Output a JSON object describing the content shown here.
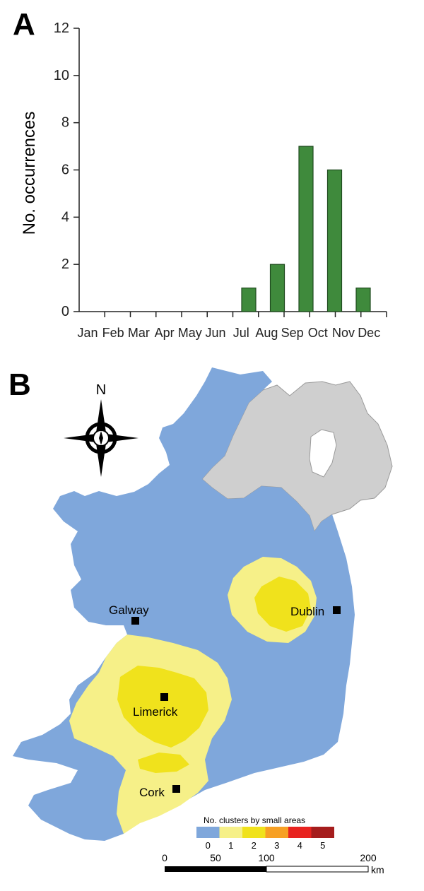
{
  "panels": {
    "a_label": "A",
    "b_label": "B"
  },
  "chart_data": {
    "type": "bar",
    "categories": [
      "Jan",
      "Feb",
      "Mar",
      "Apr",
      "May",
      "Jun",
      "Jul",
      "Aug",
      "Sep",
      "Oct",
      "Nov",
      "Dec"
    ],
    "values": [
      0,
      0,
      0,
      0,
      0,
      0,
      1,
      2,
      7,
      6,
      1,
      0
    ],
    "ylabel": "No. occurrences",
    "ylim": [
      0,
      12
    ],
    "yticks": [
      0,
      2,
      4,
      6,
      8,
      10,
      12
    ],
    "bar_color": "#3f8a3c",
    "grid": false
  },
  "map": {
    "compass_label": "N",
    "cities": [
      {
        "name": "Galway"
      },
      {
        "name": "Dublin"
      },
      {
        "name": "Limerick"
      },
      {
        "name": "Cork"
      }
    ],
    "legend": {
      "title": "No. clusters by small areas",
      "classes": [
        {
          "label": "0",
          "color": "#7fa7db"
        },
        {
          "label": "1",
          "color": "#f6f088"
        },
        {
          "label": "2",
          "color": "#f0e21c"
        },
        {
          "label": "3",
          "color": "#f7a024"
        },
        {
          "label": "4",
          "color": "#e8231f"
        },
        {
          "label": "5",
          "color": "#a51d1d"
        }
      ]
    },
    "scale_bar": {
      "ticks": [
        "0",
        "50",
        "100",
        "200"
      ],
      "unit": "km"
    },
    "colors": {
      "land_ireland": "#7fa7db",
      "northern_ireland": "#cfcfcf"
    }
  }
}
